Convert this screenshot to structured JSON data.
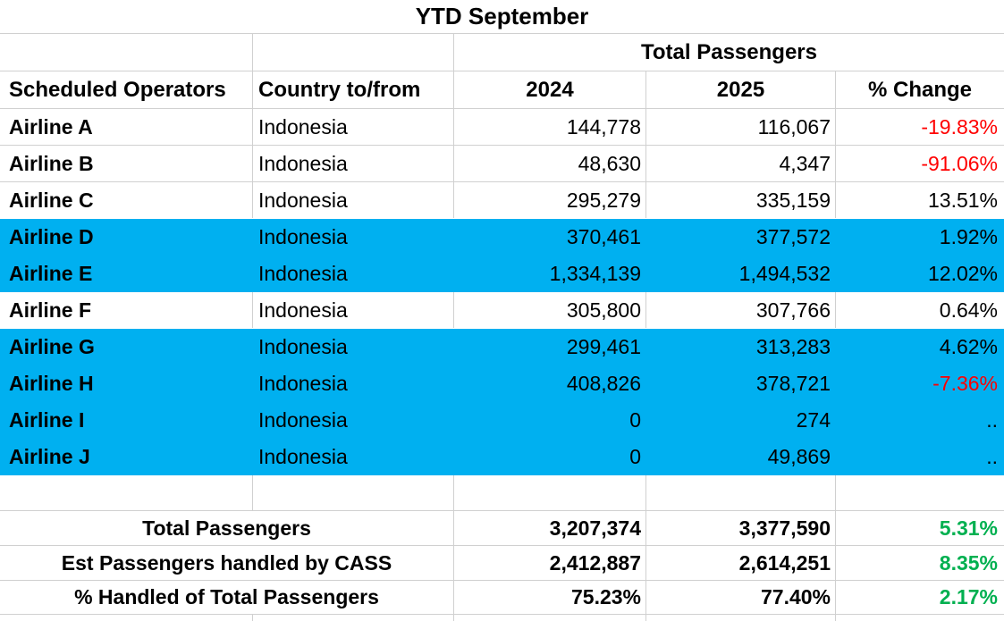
{
  "title": "YTD September",
  "header": {
    "group": "Total Passengers",
    "operators": "Scheduled Operators",
    "country": "Country to/from",
    "y2024": "2024",
    "y2025": "2025",
    "change": "% Change"
  },
  "colors": {
    "highlight_blue": "#00B0F0",
    "negative_red": "#FF0000",
    "positive_green": "#00B050",
    "gridline": "#D0D0D0",
    "text": "#000000"
  },
  "rows": [
    {
      "operator": "Airline A",
      "country": "Indonesia",
      "y2024": "144,778",
      "y2025": "116,067",
      "change": "-19.83%",
      "change_color": "#FF0000",
      "highlight": false,
      "before_highlight": false
    },
    {
      "operator": "Airline B",
      "country": "Indonesia",
      "y2024": "48,630",
      "y2025": "4,347",
      "change": "-91.06%",
      "change_color": "#FF0000",
      "highlight": false,
      "before_highlight": false
    },
    {
      "operator": "Airline C",
      "country": "Indonesia",
      "y2024": "295,279",
      "y2025": "335,159",
      "change": "13.51%",
      "change_color": "#000000",
      "highlight": false,
      "before_highlight": true
    },
    {
      "operator": "Airline D",
      "country": "Indonesia",
      "y2024": "370,461",
      "y2025": "377,572",
      "change": "1.92%",
      "change_color": "#000000",
      "highlight": true,
      "before_highlight": false
    },
    {
      "operator": "Airline E",
      "country": "Indonesia",
      "y2024": "1,334,139",
      "y2025": "1,494,532",
      "change": "12.02%",
      "change_color": "#000000",
      "highlight": true,
      "before_highlight": false
    },
    {
      "operator": "Airline F",
      "country": "Indonesia",
      "y2024": "305,800",
      "y2025": "307,766",
      "change": "0.64%",
      "change_color": "#000000",
      "highlight": false,
      "before_highlight": true
    },
    {
      "operator": "Airline G",
      "country": "Indonesia",
      "y2024": "299,461",
      "y2025": "313,283",
      "change": "4.62%",
      "change_color": "#000000",
      "highlight": true,
      "before_highlight": false
    },
    {
      "operator": "Airline H",
      "country": "Indonesia",
      "y2024": "408,826",
      "y2025": "378,721",
      "change": "-7.36%",
      "change_color": "#FF0000",
      "highlight": true,
      "before_highlight": false
    },
    {
      "operator": "Airline I",
      "country": "Indonesia",
      "y2024": "0",
      "y2025": "274",
      "change": "..",
      "change_color": "#000000",
      "highlight": true,
      "before_highlight": false
    },
    {
      "operator": "Airline J",
      "country": "Indonesia",
      "y2024": "0",
      "y2025": "49,869",
      "change": "..",
      "change_color": "#000000",
      "highlight": true,
      "before_highlight": false
    }
  ],
  "summary": [
    {
      "label": "Total Passengers",
      "y2024": "3,207,374",
      "y2025": "3,377,590",
      "change": "5.31%",
      "change_color": "#00B050"
    },
    {
      "label": "Est Passengers handled by CASS",
      "y2024": "2,412,887",
      "y2025": "2,614,251",
      "change": "8.35%",
      "change_color": "#00B050"
    },
    {
      "label": "% Handled of Total Passengers",
      "y2024": "75.23%",
      "y2025": "77.40%",
      "change": "2.17%",
      "change_color": "#00B050"
    }
  ]
}
